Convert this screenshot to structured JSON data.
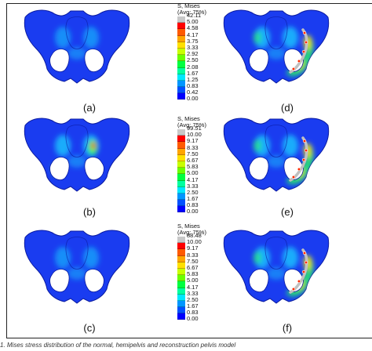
{
  "legend_colors": [
    "#c8c8c8",
    "#ff0000",
    "#ff5a00",
    "#ffa500",
    "#ffe000",
    "#c8ff00",
    "#6cff00",
    "#00ff40",
    "#00ffa0",
    "#00e8ff",
    "#0096ff",
    "#0050ff",
    "#0000ff"
  ],
  "palette": {
    "pelvis_base": "#1a3cf0",
    "pelvis_edge": "#0a1aa0",
    "stress_mid": "#19d2ff",
    "stress_hot": "#2bff5c",
    "stress_peak": "#ffe000",
    "stress_max": "#ff2a00",
    "implant": "#c0c0c0"
  },
  "panels": [
    {
      "caption": "(a)",
      "severity": "low",
      "implant": false
    },
    {
      "caption": "(b)",
      "severity": "medium",
      "implant": false
    },
    {
      "caption": "(c)",
      "severity": "low",
      "implant": false
    },
    {
      "caption": "(d)",
      "severity": "high",
      "implant": true
    },
    {
      "caption": "(e)",
      "severity": "high",
      "implant": true
    },
    {
      "caption": "(f)",
      "severity": "high",
      "implant": true
    }
  ],
  "legends": [
    {
      "title": "S, Mises",
      "subtitle": "(Avg: 75%)",
      "values": [
        "42.11",
        "5.00",
        "4.58",
        "4.17",
        "3.75",
        "3.33",
        "2.92",
        "2.50",
        "2.08",
        "1.67",
        "1.25",
        "0.83",
        "0.42",
        "0.00"
      ]
    },
    {
      "title": "S, Mises",
      "subtitle": "(Avg: 75%)",
      "values": [
        "99.51",
        "10.00",
        "9.17",
        "8.33",
        "7.50",
        "6.67",
        "5.83",
        "5.00",
        "4.17",
        "3.33",
        "2.50",
        "1.67",
        "0.83",
        "0.00"
      ]
    },
    {
      "title": "S, Mises",
      "subtitle": "(Avg: 75%)",
      "values": [
        "88.48",
        "10.00",
        "9.17",
        "8.33",
        "7.50",
        "6.67",
        "5.83",
        "5.00",
        "4.17",
        "3.33",
        "2.50",
        "1.67",
        "0.83",
        "0.00"
      ]
    }
  ],
  "footer_text": "1. Mises stress distribution of the normal, hemipelvis and reconstruction pelvis model"
}
